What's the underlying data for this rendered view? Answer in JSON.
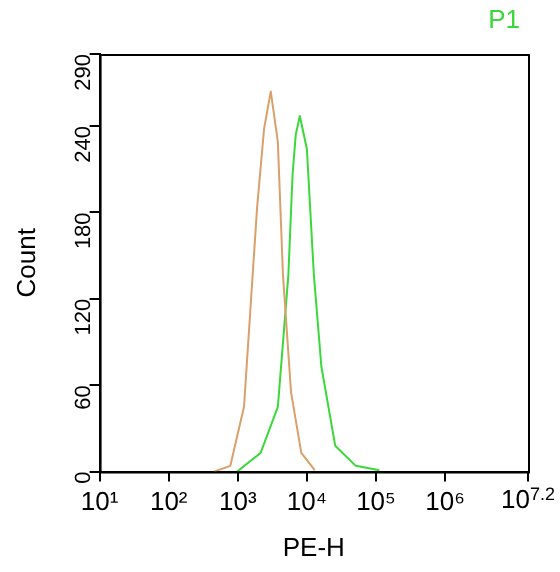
{
  "chart_data": {
    "type": "line",
    "xlabel": "PE-H",
    "ylabel": "Count",
    "log": "x",
    "xlim": [
      10,
      15848932
    ],
    "xticks": [
      {
        "value": 10,
        "label": "10¹"
      },
      {
        "value": 100,
        "label": "10²"
      },
      {
        "value": 1000,
        "label": "10³"
      },
      {
        "value": 10000,
        "label": "10⁴"
      },
      {
        "value": 100000,
        "label": "10⁵"
      },
      {
        "value": 1000000,
        "label": "10⁶"
      },
      {
        "value": 15848932,
        "label": "10$^{7.2}$"
      }
    ],
    "ylim": [
      0,
      290
    ],
    "yticks": [
      0,
      60,
      120,
      180,
      240,
      290
    ],
    "grid": false,
    "legend": "top right",
    "marker": "none",
    "line_style": "solid",
    "series": [
      {
        "color": "#d9a06a",
        "x": [
          450,
          780,
          1230,
          1900,
          2400,
          3000,
          3800,
          4500,
          5900,
          8300,
          13000
        ],
        "values": [
          0,
          4,
          45,
          183,
          238,
          264,
          229,
          137,
          55,
          13,
          1
        ]
      },
      {
        "name": "P1",
        "color": "#3ad83a",
        "x": [
          980,
          2140,
          3800,
          5400,
          6200,
          6900,
          7900,
          10000,
          12600,
          16200,
          25700,
          51000,
          112000
        ],
        "values": [
          0,
          13,
          45,
          137,
          206,
          234,
          247,
          224,
          137,
          73,
          18,
          4,
          1
        ]
      }
    ]
  }
}
